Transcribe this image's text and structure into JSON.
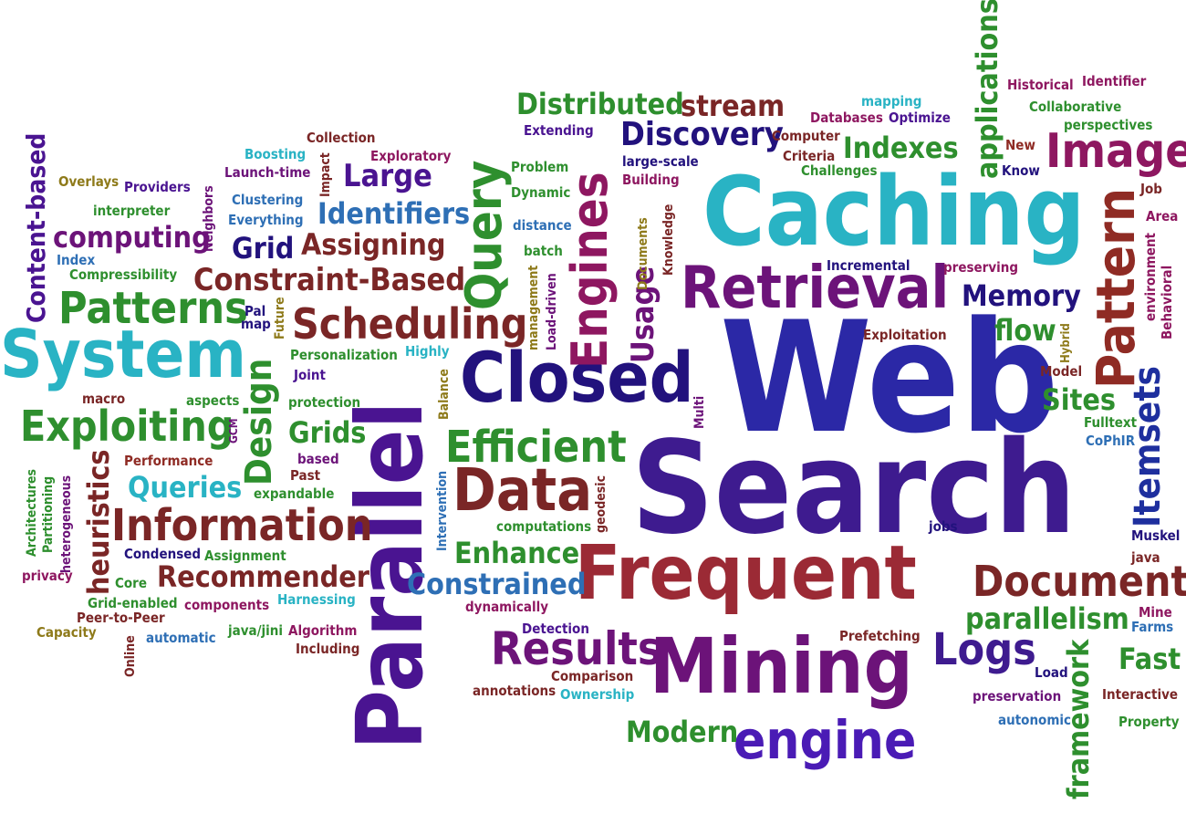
{
  "words": [
    {
      "t": "Web",
      "c": "#2b28a6"
    },
    {
      "t": "Search",
      "c": "#3e1b8f"
    },
    {
      "t": "Caching",
      "c": "#29b3c4"
    },
    {
      "t": "Frequent",
      "c": "#9b2a35"
    },
    {
      "t": "Mining",
      "c": "#6c1379"
    },
    {
      "t": "Parallel",
      "c": "#4a1491"
    },
    {
      "t": "Closed",
      "c": "#22127d"
    },
    {
      "t": "Retrieval",
      "c": "#6c1379"
    },
    {
      "t": "System",
      "c": "#29b3c4"
    },
    {
      "t": "Pattern",
      "c": "#8f2b24"
    },
    {
      "t": "Query",
      "c": "#2e8f2e"
    },
    {
      "t": "Engines",
      "c": "#8e1760"
    },
    {
      "t": "Image",
      "c": "#8e1760"
    },
    {
      "t": "Data",
      "c": "#7a2626"
    },
    {
      "t": "Information",
      "c": "#7a2626"
    },
    {
      "t": "Exploiting",
      "c": "#2e8f2e"
    },
    {
      "t": "Scheduling",
      "c": "#7a2626"
    },
    {
      "t": "Efficient",
      "c": "#2e8f2e"
    },
    {
      "t": "Results",
      "c": "#6c1379"
    },
    {
      "t": "Document",
      "c": "#7a2626"
    },
    {
      "t": "engine",
      "c": "#4a1bb5"
    },
    {
      "t": "Itemsets",
      "c": "#1e2f9e"
    },
    {
      "t": "Patterns",
      "c": "#2e8f2e"
    },
    {
      "t": "Constraint-Based",
      "c": "#7a2626"
    },
    {
      "t": "Design",
      "c": "#2e8f2e"
    },
    {
      "t": "Logs",
      "c": "#3e1b8f"
    },
    {
      "t": "Usage",
      "c": "#6c1379"
    },
    {
      "t": "Recommender",
      "c": "#7a2626"
    },
    {
      "t": "Content-based",
      "c": "#4a1491"
    },
    {
      "t": "Discovery",
      "c": "#22127d"
    },
    {
      "t": "Distributed",
      "c": "#2e8f2e"
    },
    {
      "t": "stream",
      "c": "#7a2626"
    },
    {
      "t": "Indexes",
      "c": "#2e8f2e"
    },
    {
      "t": "applications",
      "c": "#2e8f2e"
    },
    {
      "t": "framework",
      "c": "#2e8f2e"
    },
    {
      "t": "Identifiers",
      "c": "#2e6fb5"
    },
    {
      "t": "Large",
      "c": "#4a1491"
    },
    {
      "t": "Assigning",
      "c": "#7a2626"
    },
    {
      "t": "computing",
      "c": "#6c1379"
    },
    {
      "t": "Grid",
      "c": "#22127d"
    },
    {
      "t": "Memory",
      "c": "#22127d"
    },
    {
      "t": "heuristics",
      "c": "#7a2626"
    },
    {
      "t": "Queries",
      "c": "#29b3c4"
    },
    {
      "t": "Grids",
      "c": "#2e8f2e"
    },
    {
      "t": "Enhance",
      "c": "#2e8f2e"
    },
    {
      "t": "Constrained",
      "c": "#2e6fb5"
    },
    {
      "t": "parallelism",
      "c": "#2e8f2e"
    },
    {
      "t": "Fast",
      "c": "#2e8f2e"
    },
    {
      "t": "Modern",
      "c": "#2e8f2e"
    },
    {
      "t": "flow",
      "c": "#2e8f2e"
    },
    {
      "t": "Sites",
      "c": "#2e8f2e"
    },
    {
      "t": "Historical",
      "c": "#8e1760"
    },
    {
      "t": "Identifier",
      "c": "#8e1760"
    },
    {
      "t": "Collaborative",
      "c": "#2e8f2e"
    },
    {
      "t": "perspectives",
      "c": "#2e8f2e"
    },
    {
      "t": "mapping",
      "c": "#29b3c4"
    },
    {
      "t": "Databases",
      "c": "#8e1760"
    },
    {
      "t": "Optimize",
      "c": "#4a1491"
    },
    {
      "t": "Computer",
      "c": "#7a2626"
    },
    {
      "t": "New",
      "c": "#8f2b24"
    },
    {
      "t": "Criteria",
      "c": "#7a2626"
    },
    {
      "t": "Challenges",
      "c": "#2e8f2e"
    },
    {
      "t": "Know",
      "c": "#22127d"
    },
    {
      "t": "Job",
      "c": "#7a2626"
    },
    {
      "t": "Area",
      "c": "#8e1760"
    },
    {
      "t": "environment",
      "c": "#8e1760"
    },
    {
      "t": "Behavioral",
      "c": "#8e1760"
    },
    {
      "t": "preserving",
      "c": "#8e1760"
    },
    {
      "t": "Incremental",
      "c": "#22127d"
    },
    {
      "t": "Exploitation",
      "c": "#7a2626"
    },
    {
      "t": "Hybrid",
      "c": "#8e7a1a"
    },
    {
      "t": "Model",
      "c": "#7a2626"
    },
    {
      "t": "Fulltext",
      "c": "#2e8f2e"
    },
    {
      "t": "CoPhIR",
      "c": "#2e6fb5"
    },
    {
      "t": "jobs",
      "c": "#22127d"
    },
    {
      "t": "Muskel",
      "c": "#22127d"
    },
    {
      "t": "java",
      "c": "#7a2626"
    },
    {
      "t": "Mine",
      "c": "#8e1760"
    },
    {
      "t": "Farms",
      "c": "#2e6fb5"
    },
    {
      "t": "Load",
      "c": "#22127d"
    },
    {
      "t": "Interactive",
      "c": "#7a2626"
    },
    {
      "t": "preservation",
      "c": "#6c1379"
    },
    {
      "t": "autonomic",
      "c": "#2e6fb5"
    },
    {
      "t": "Property",
      "c": "#2e8f2e"
    },
    {
      "t": "Prefetching",
      "c": "#7a2626"
    },
    {
      "t": "Comparison",
      "c": "#7a2626"
    },
    {
      "t": "Ownership",
      "c": "#29b3c4"
    },
    {
      "t": "annotations",
      "c": "#7a2626"
    },
    {
      "t": "Detection",
      "c": "#4a1491"
    },
    {
      "t": "dynamically",
      "c": "#8e1760"
    },
    {
      "t": "computations",
      "c": "#2e8f2e"
    },
    {
      "t": "geodesic",
      "c": "#7a2626"
    },
    {
      "t": "Intervention",
      "c": "#2e6fb5"
    },
    {
      "t": "Multi",
      "c": "#6c1379"
    },
    {
      "t": "Balance",
      "c": "#8e7a1a"
    },
    {
      "t": "Highly",
      "c": "#29b3c4"
    },
    {
      "t": "Extending",
      "c": "#4a1491"
    },
    {
      "t": "large-scale",
      "c": "#22127d"
    },
    {
      "t": "Building",
      "c": "#8e1760"
    },
    {
      "t": "Problem",
      "c": "#2e8f2e"
    },
    {
      "t": "Dynamic",
      "c": "#2e8f2e"
    },
    {
      "t": "distance",
      "c": "#2e6fb5"
    },
    {
      "t": "batch",
      "c": "#2e8f2e"
    },
    {
      "t": "Knowledge",
      "c": "#7a2626"
    },
    {
      "t": "Documents",
      "c": "#8e7a1a"
    },
    {
      "t": "management",
      "c": "#8e7a1a"
    },
    {
      "t": "Load-driven",
      "c": "#6c1379"
    },
    {
      "t": "Collection",
      "c": "#7a2626"
    },
    {
      "t": "Exploratory",
      "c": "#8e1760"
    },
    {
      "t": "Impact",
      "c": "#7a2626"
    },
    {
      "t": "Boosting",
      "c": "#29b3c4"
    },
    {
      "t": "Launch-time",
      "c": "#6c1379"
    },
    {
      "t": "Clustering",
      "c": "#2e6fb5"
    },
    {
      "t": "Everything",
      "c": "#2e6fb5"
    },
    {
      "t": "Neighbors",
      "c": "#6c1379"
    },
    {
      "t": "Overlays",
      "c": "#8e7a1a"
    },
    {
      "t": "Providers",
      "c": "#4a1491"
    },
    {
      "t": "interpreter",
      "c": "#2e8f2e"
    },
    {
      "t": "Index",
      "c": "#2e6fb5"
    },
    {
      "t": "Compressibility",
      "c": "#2e8f2e"
    },
    {
      "t": "Pal",
      "c": "#22127d"
    },
    {
      "t": "map",
      "c": "#22127d"
    },
    {
      "t": "Future",
      "c": "#8e7a1a"
    },
    {
      "t": "Personalization",
      "c": "#2e8f2e"
    },
    {
      "t": "Joint",
      "c": "#4a1491"
    },
    {
      "t": "protection",
      "c": "#2e8f2e"
    },
    {
      "t": "macro",
      "c": "#7a2626"
    },
    {
      "t": "aspects",
      "c": "#2e8f2e"
    },
    {
      "t": "GCM",
      "c": "#6c1379"
    },
    {
      "t": "Performance",
      "c": "#8f2b24"
    },
    {
      "t": "based",
      "c": "#6c1379"
    },
    {
      "t": "Past",
      "c": "#7a2626"
    },
    {
      "t": "expandable",
      "c": "#2e8f2e"
    },
    {
      "t": "Architectures",
      "c": "#2e8f2e"
    },
    {
      "t": "Partitioning",
      "c": "#2e8f2e"
    },
    {
      "t": "heterogeneous",
      "c": "#6c1379"
    },
    {
      "t": "Condensed",
      "c": "#22127d"
    },
    {
      "t": "Assignment",
      "c": "#2e8f2e"
    },
    {
      "t": "privacy",
      "c": "#8e1760"
    },
    {
      "t": "Core",
      "c": "#2e8f2e"
    },
    {
      "t": "Grid-enabled",
      "c": "#2e8f2e"
    },
    {
      "t": "components",
      "c": "#8e1760"
    },
    {
      "t": "Harnessing",
      "c": "#29b3c4"
    },
    {
      "t": "Peer-to-Peer",
      "c": "#7a2626"
    },
    {
      "t": "Capacity",
      "c": "#8e7a1a"
    },
    {
      "t": "automatic",
      "c": "#2e6fb5"
    },
    {
      "t": "java/jini",
      "c": "#2e8f2e"
    },
    {
      "t": "Algorithm",
      "c": "#8e1760"
    },
    {
      "t": "Including",
      "c": "#7a2626"
    },
    {
      "t": "Online",
      "c": "#7a2626"
    }
  ]
}
